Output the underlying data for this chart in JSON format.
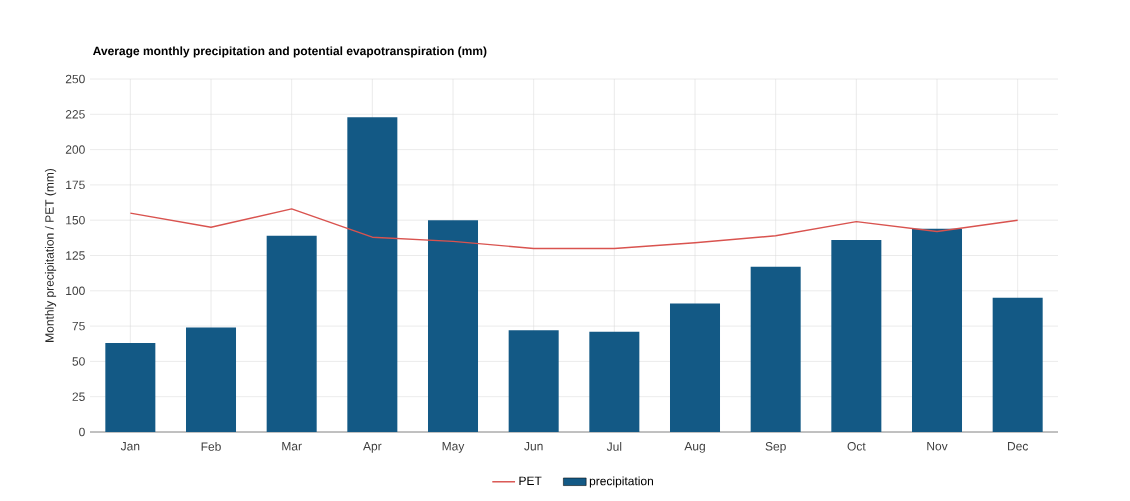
{
  "chart_data": {
    "type": "bar",
    "title": "Average monthly precipitation and potential evapotranspiration (mm)",
    "ylabel": "Monthly precipitation / PET (mm)",
    "categories": [
      "Jan",
      "Feb",
      "Mar",
      "Apr",
      "May",
      "Jun",
      "Jul",
      "Aug",
      "Sep",
      "Oct",
      "Nov",
      "Dec"
    ],
    "series": [
      {
        "name": "PET",
        "type": "line",
        "color": "#d9534f",
        "values": [
          155,
          145,
          158,
          138,
          135,
          130,
          130,
          134,
          139,
          149,
          142,
          150
        ]
      },
      {
        "name": "precipitation",
        "color": "#135985",
        "values": [
          63,
          74,
          139,
          223,
          150,
          72,
          71,
          91,
          117,
          136,
          144,
          95
        ]
      }
    ],
    "ylim": [
      0,
      250
    ],
    "yticks": [
      0,
      25,
      50,
      75,
      100,
      125,
      150,
      175,
      200,
      225,
      250
    ],
    "grid": true,
    "legend": "bottom"
  }
}
